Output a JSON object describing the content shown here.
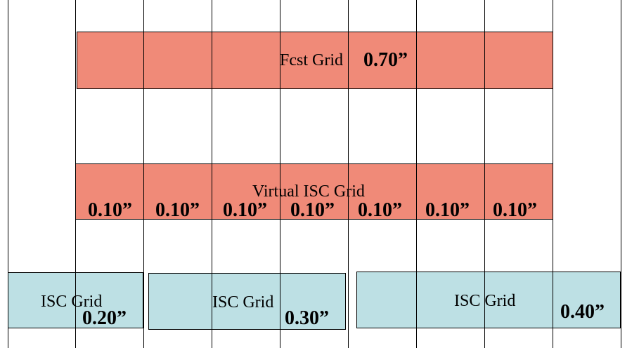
{
  "fcst": {
    "label": "Fcst Grid",
    "value": "0.70”"
  },
  "virtual": {
    "label": "Virtual ISC Grid",
    "cells": [
      "0.10”",
      "0.10”",
      "0.10”",
      "0.10”",
      "0.10”",
      "0.10”",
      "0.10”"
    ]
  },
  "isc": [
    {
      "label": "ISC Grid",
      "value": "0.20”"
    },
    {
      "label": "ISC Grid",
      "value": "0.30”"
    },
    {
      "label": "ISC Grid",
      "value": "0.40”"
    }
  ],
  "colors": {
    "fcst_fill": "#f08a78",
    "virtual_fill": "#f08a78",
    "isc_fill": "#bde0e4",
    "grid_line": "#000000"
  }
}
